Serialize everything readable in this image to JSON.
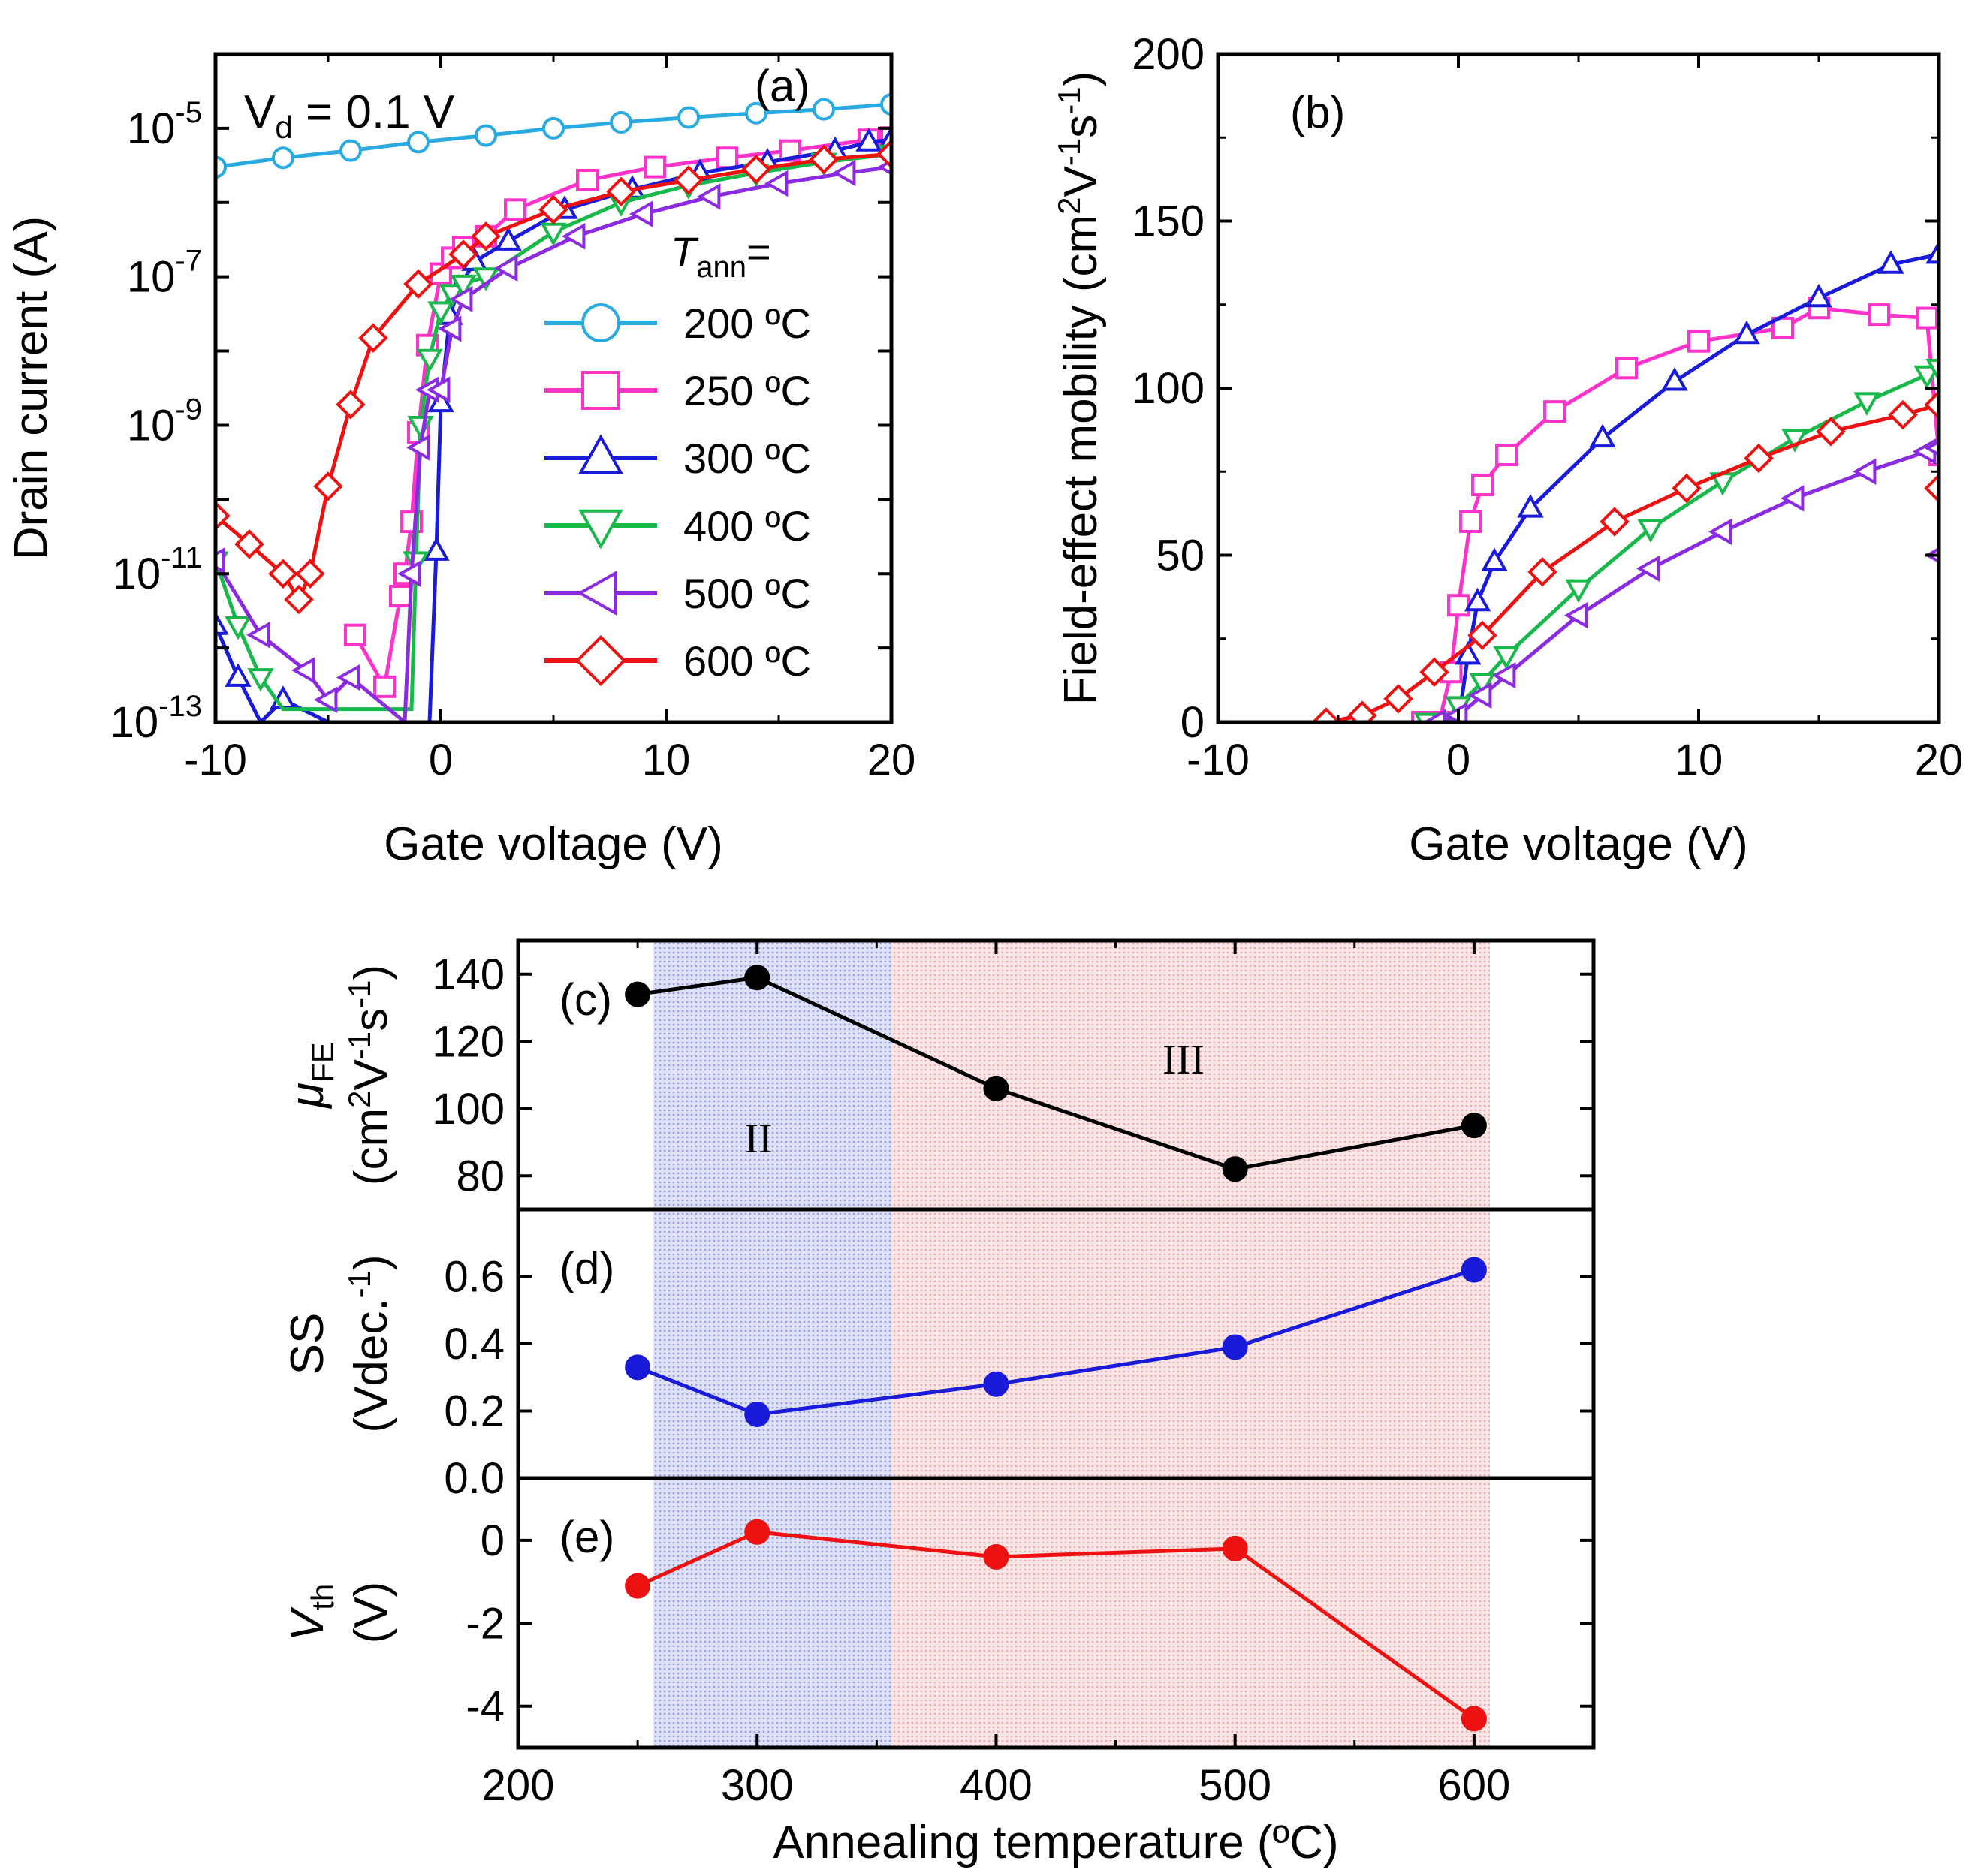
{
  "chart_data": [
    {
      "panel": "(a)",
      "type": "line",
      "xlabel": "Gate voltage (V)",
      "ylabel": "Drain current (A)",
      "yscale": "log",
      "xlim": [
        -10,
        20
      ],
      "ylim": [
        1e-13,
        0.0001
      ],
      "xticks": [
        "-10",
        "0",
        "10",
        "20"
      ],
      "yticks": [
        {
          "base": "10",
          "exp": "-5",
          "value": 1e-05
        },
        {
          "base": "10",
          "exp": "-7",
          "value": 1e-07
        },
        {
          "base": "10",
          "exp": "-9",
          "value": 1e-09
        },
        {
          "base": "10",
          "exp": "-11",
          "value": 1e-11
        },
        {
          "base": "10",
          "exp": "-13",
          "value": 1e-13
        }
      ],
      "annotation": {
        "main": "V",
        "sub": "d",
        "rest": " = 0.1 V"
      },
      "legend_title": {
        "italic": "T",
        "sub": "ann",
        "rest": "="
      },
      "legend_position": "right",
      "series": [
        {
          "name": "200 ºC",
          "color": "#29abe2",
          "marker": "circle",
          "x": [
            -10,
            -7,
            -4,
            -1,
            2,
            5,
            8,
            11,
            14,
            17,
            20
          ],
          "y": [
            3e-06,
            4e-06,
            5e-06,
            6.5e-06,
            8e-06,
            1e-05,
            1.2e-05,
            1.4e-05,
            1.6e-05,
            1.8e-05,
            2.1e-05
          ]
        },
        {
          "name": "250 ºC",
          "color": "#ff33cc",
          "marker": "square",
          "x": [
            -3.8,
            -2.5,
            -1.8,
            -1.6,
            -1.3,
            -1,
            -0.6,
            0,
            0.5,
            1,
            2,
            3.3,
            6.5,
            9.5,
            12.7,
            15.5,
            19,
            20
          ],
          "y": [
            1.5e-12,
            3e-13,
            5e-12,
            1e-11,
            5e-11,
            8e-10,
            1.2e-08,
            1.1e-07,
            1.8e-07,
            2.5e-07,
            3.5e-07,
            8e-07,
            2e-06,
            3e-06,
            4e-06,
            5e-06,
            7e-06,
            7.5e-06
          ]
        },
        {
          "name": "300 ºC",
          "color": "#1a1adb",
          "marker": "triangle-up",
          "x": [
            -10,
            -9,
            -8,
            -7,
            -5,
            -0.5,
            -0.2,
            0,
            0.4,
            0.8,
            1.5,
            3,
            5.5,
            8.5,
            11.5,
            14.5,
            17.5,
            19,
            20
          ],
          "y": [
            2e-12,
            4e-13,
            1e-13,
            2e-13,
            1e-13,
            1e-13,
            2e-11,
            2e-09,
            3e-08,
            7e-08,
            1.6e-07,
            3e-07,
            8e-07,
            1.5e-06,
            2.5e-06,
            3.5e-06,
            5e-06,
            6.5e-06,
            7e-06
          ]
        },
        {
          "name": "400 ºC",
          "color": "#19b84b",
          "marker": "triangle-down",
          "x": [
            -10,
            -9,
            -8,
            -7,
            -1.3,
            -1.1,
            -0.9,
            -0.5,
            0,
            0.5,
            1,
            2,
            5,
            8,
            11,
            14,
            17,
            20
          ],
          "y": [
            1.5e-11,
            2e-12,
            4e-13,
            1.5e-13,
            1.5e-13,
            1.5e-11,
            1e-09,
            8e-09,
            3.5e-08,
            6e-08,
            8e-08,
            1e-07,
            4e-07,
            1e-06,
            1.7e-06,
            2.5e-06,
            3.5e-06,
            4.5e-06
          ]
        },
        {
          "name": "500 ºC",
          "color": "#8a2be2",
          "marker": "triangle-left",
          "x": [
            -10,
            -8,
            -6,
            -5,
            -4,
            -1.6,
            -1.3,
            -0.9,
            -0.5,
            0,
            0.5,
            1,
            3,
            6,
            9,
            12,
            15,
            18,
            20
          ],
          "y": [
            1.5e-11,
            1.5e-12,
            5e-13,
            2e-13,
            4e-13,
            1e-13,
            1e-11,
            5e-10,
            3e-09,
            3e-09,
            2e-08,
            5e-08,
            1.3e-07,
            3.5e-07,
            7e-07,
            1.2e-06,
            1.8e-06,
            2.5e-06,
            3e-06
          ]
        },
        {
          "name": "600 ºC",
          "color": "#ee1111",
          "marker": "diamond",
          "x": [
            -10,
            -8.5,
            -7,
            -6.3,
            -5.8,
            -5,
            -4,
            -3,
            -1,
            1,
            2,
            5,
            8,
            11,
            14,
            17,
            20
          ],
          "y": [
            6e-11,
            2.5e-11,
            1e-11,
            4.5e-12,
            1e-11,
            1.5e-10,
            1.9e-09,
            1.5e-08,
            8e-08,
            2e-07,
            3.5e-07,
            8e-07,
            1.4e-06,
            2e-06,
            2.8e-06,
            3.8e-06,
            4.5e-06
          ]
        }
      ]
    },
    {
      "panel": "(b)",
      "type": "line",
      "xlabel": "Gate voltage (V)",
      "ylabel_parts": [
        "Field-effect mobility (cm",
        "2",
        "V",
        "-1",
        "s",
        "-1",
        ")"
      ],
      "xlim": [
        -10,
        20
      ],
      "ylim": [
        0,
        200
      ],
      "xticks": [
        "-10",
        "0",
        "10",
        "20"
      ],
      "yticks": [
        "0",
        "50",
        "100",
        "150",
        "200"
      ],
      "series": [
        {
          "name": "250 ºC",
          "color": "#ff33cc",
          "marker": "square",
          "x": [
            -1.5,
            -0.8,
            -0.3,
            0,
            0.5,
            1,
            2,
            4,
            7,
            10,
            13.5,
            15,
            17.5,
            19.5,
            20
          ],
          "y": [
            0,
            0,
            15,
            35,
            60,
            71,
            80,
            93,
            106,
            114,
            118,
            124,
            122,
            121,
            80
          ]
        },
        {
          "name": "300 ºC",
          "color": "#1a1adb",
          "marker": "triangle-up",
          "x": [
            0,
            0.4,
            0.8,
            1.5,
            3,
            6,
            9,
            12,
            15,
            18,
            20
          ],
          "y": [
            0,
            20,
            36,
            48,
            64,
            85,
            102,
            116,
            127,
            137,
            140
          ]
        },
        {
          "name": "400 ºC",
          "color": "#19b84b",
          "marker": "triangle-down",
          "x": [
            -1.3,
            -0.6,
            0,
            1,
            2,
            5,
            8,
            11,
            14,
            17,
            19.5,
            20
          ],
          "y": [
            0,
            0,
            5,
            12,
            20,
            40,
            58,
            72,
            85,
            96,
            104,
            106
          ]
        },
        {
          "name": "500 ºC",
          "color": "#8a2be2",
          "marker": "triangle-left",
          "x": [
            -0.9,
            0,
            1,
            2,
            5,
            8,
            11,
            14,
            17,
            19.5,
            20,
            20
          ],
          "y": [
            0,
            2,
            8,
            14,
            32,
            46,
            57,
            67,
            75,
            81,
            82,
            50
          ]
        },
        {
          "name": "600 ºC",
          "color": "#ee1111",
          "marker": "diamond",
          "x": [
            -5.5,
            -4,
            -2.5,
            -1,
            1,
            3.5,
            6.5,
            9.5,
            12.5,
            15.5,
            18.5,
            20,
            20
          ],
          "y": [
            0,
            2,
            7,
            15,
            26,
            45,
            60,
            70,
            79,
            87,
            92,
            95,
            70
          ]
        }
      ]
    },
    {
      "panel": "(c)",
      "type": "line",
      "ylabel": [
        "μ",
        "FE",
        "(cm",
        "2",
        "V",
        "-1",
        "s",
        "-1",
        ")"
      ],
      "xlim": [
        200,
        650
      ],
      "ylim": [
        70,
        150
      ],
      "yticks": [
        "80",
        "100",
        "120",
        "140"
      ],
      "regions": [
        {
          "label": "II",
          "from": 250,
          "to": 350,
          "color": "#c9cff0"
        },
        {
          "label": "III",
          "from": 350,
          "to": 600,
          "color": "#f5d6d6"
        }
      ],
      "series": [
        {
          "name": "μFE",
          "color": "#000000",
          "x": [
            250,
            300,
            400,
            500,
            600
          ],
          "y": [
            134,
            139,
            106,
            82,
            95
          ]
        }
      ]
    },
    {
      "panel": "(d)",
      "type": "line",
      "ylabel": [
        "SS",
        "(Vdec.",
        "-1",
        ")"
      ],
      "xlim": [
        200,
        650
      ],
      "ylim": [
        0,
        0.8
      ],
      "yticks": [
        "0.0",
        "0.2",
        "0.4",
        "0.6"
      ],
      "series": [
        {
          "name": "SS",
          "color": "#1a1adb",
          "x": [
            250,
            300,
            400,
            500,
            600
          ],
          "y": [
            0.33,
            0.19,
            0.28,
            0.39,
            0.62
          ]
        }
      ]
    },
    {
      "panel": "(e)",
      "type": "line",
      "ylabel": [
        "V",
        "th",
        "(V)"
      ],
      "xlabel": "Annealing temperature (ºC)",
      "xlim": [
        200,
        650
      ],
      "ylim": [
        -5,
        1.5
      ],
      "xticks": [
        "200",
        "300",
        "400",
        "500",
        "600"
      ],
      "yticks": [
        "0",
        "-2",
        "-4"
      ],
      "series": [
        {
          "name": "Vth",
          "color": "#ee1111",
          "x": [
            250,
            300,
            400,
            500,
            600
          ],
          "y": [
            -1.1,
            0.2,
            -0.4,
            -0.2,
            -4.3
          ]
        }
      ]
    }
  ]
}
